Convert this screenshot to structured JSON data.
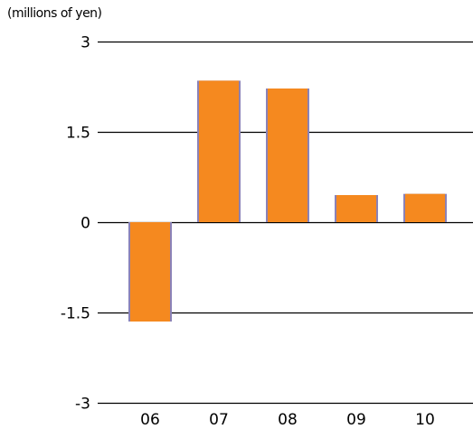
{
  "chart_data": {
    "type": "bar",
    "unit_label": "(millions of yen)",
    "categories": [
      "06",
      "07",
      "08",
      "09",
      "10"
    ],
    "values": [
      -1.65,
      2.35,
      2.22,
      0.45,
      0.47
    ],
    "ylim": [
      -3,
      3
    ],
    "y_ticks": [
      3,
      1.5,
      0,
      -1.5,
      -3
    ],
    "y_tick_labels": [
      "3",
      "1.5",
      "0",
      "-1.5",
      "-3"
    ],
    "grid": true,
    "colors": {
      "bar": "#f5891f",
      "bar_shadow": "#8a82b8",
      "grid": "#000000"
    }
  }
}
